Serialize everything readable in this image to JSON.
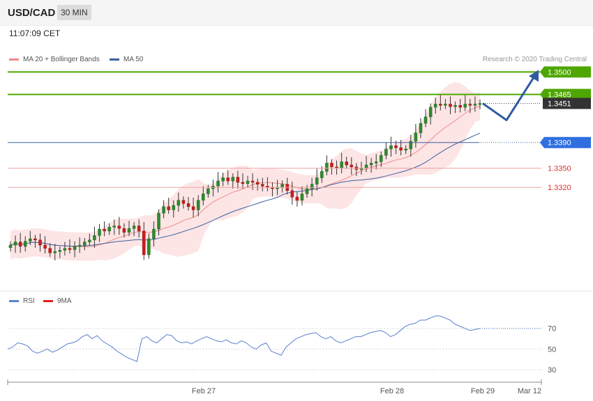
{
  "header": {
    "pair": "USD/CAD",
    "timeframe": "30 MIN",
    "time": "11:07:09 CET"
  },
  "legend": {
    "ma20_label": "MA 20 + Bollinger Bands",
    "ma50_label": "MA 50",
    "ma20_color": "#f08a8a",
    "ma50_color": "#3a5fa0",
    "credit": "Research © 2020 Trading Central"
  },
  "rsi_legend": {
    "rsi_label": "RSI",
    "ma9_label": "9MA",
    "rsi_color": "#5b7fd1",
    "ma9_color": "#e02020"
  },
  "chart_data": [
    {
      "type": "candlestick",
      "ylim": [
        1.3165,
        1.352
      ],
      "x_labels": [
        "Feb 27",
        "Feb 28",
        "Feb 29",
        "Mar 12"
      ],
      "levels": [
        {
          "value": "1.3500",
          "kind": "resistance",
          "color": "#4ea600"
        },
        {
          "value": "1.3465",
          "kind": "resistance",
          "color": "#4ea600"
        },
        {
          "value": "1.3451",
          "kind": "last price",
          "color": "#333333"
        },
        {
          "value": "1.3390",
          "kind": "pivot",
          "color": "#2f6fe0"
        },
        {
          "value": "1.3350",
          "kind": "support",
          "color": "#e03030"
        },
        {
          "value": "1.3320",
          "kind": "support",
          "color": "#e03030"
        }
      ],
      "scenario_path": [
        1.3451,
        1.3425,
        1.35
      ],
      "close_series": [
        1.323,
        1.3235,
        1.3228,
        1.3236,
        1.324,
        1.3238,
        1.323,
        1.3225,
        1.3218,
        1.322,
        1.3222,
        1.3225,
        1.3223,
        1.3228,
        1.323,
        1.3235,
        1.3238,
        1.3245,
        1.3255,
        1.3252,
        1.3258,
        1.326,
        1.3256,
        1.325,
        1.3256,
        1.326,
        1.3252,
        1.3215,
        1.324,
        1.3255,
        1.328,
        1.329,
        1.3285,
        1.3292,
        1.33,
        1.3295,
        1.329,
        1.3285,
        1.33,
        1.331,
        1.3318,
        1.3322,
        1.333,
        1.3335,
        1.333,
        1.3336,
        1.3328,
        1.3326,
        1.333,
        1.3328,
        1.3325,
        1.3322,
        1.332,
        1.3318,
        1.332,
        1.3325,
        1.3315,
        1.3305,
        1.33,
        1.331,
        1.3318,
        1.3325,
        1.3335,
        1.3345,
        1.3358,
        1.3352,
        1.335,
        1.336,
        1.3355,
        1.3352,
        1.3348,
        1.335,
        1.3355,
        1.3358,
        1.336,
        1.337,
        1.338,
        1.3385,
        1.3382,
        1.3378,
        1.338,
        1.3392,
        1.3405,
        1.342,
        1.343,
        1.3445,
        1.345,
        1.3448,
        1.345,
        1.3446,
        1.3448,
        1.3445,
        1.345,
        1.3448,
        1.345,
        1.3451
      ]
    },
    {
      "type": "line",
      "title": "RSI",
      "ylim": [
        20,
        90
      ],
      "y_ticks": [
        "70",
        "50",
        "30"
      ],
      "series": [
        {
          "name": "RSI",
          "values": [
            50,
            52,
            56,
            55,
            53,
            48,
            46,
            48,
            50,
            47,
            49,
            52,
            55,
            56,
            58,
            62,
            64,
            60,
            63,
            58,
            55,
            52,
            48,
            45,
            42,
            40,
            38,
            60,
            62,
            58,
            56,
            60,
            64,
            63,
            58,
            56,
            57,
            55,
            58,
            60,
            62,
            60,
            58,
            57,
            59,
            56,
            55,
            58,
            56,
            52,
            50,
            54,
            56,
            48,
            46,
            44,
            52,
            56,
            60,
            62,
            64,
            65,
            66,
            62,
            60,
            62,
            58,
            56,
            58,
            60,
            62,
            62,
            64,
            66,
            67,
            68,
            66,
            62,
            64,
            68,
            72,
            74,
            75,
            78,
            78,
            80,
            82,
            82,
            80,
            78,
            74,
            72,
            70,
            68,
            69,
            70
          ]
        }
      ]
    }
  ]
}
